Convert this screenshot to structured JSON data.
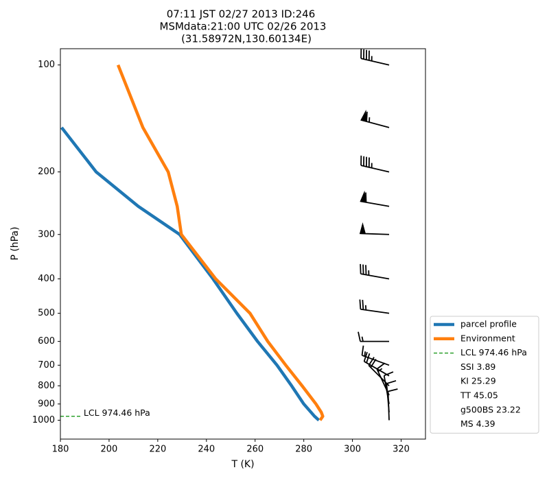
{
  "chart_data": {
    "type": "sounding",
    "title": [
      "07:11 JST 02/27 2013  ID:246",
      "MSMdata:21:00 UTC 02/26 2013",
      "(31.58972N,130.60134E)"
    ],
    "xlabel": "T (K)",
    "ylabel": "P (hPa)",
    "xlim": [
      180,
      330
    ],
    "xticks": [
      180,
      200,
      220,
      240,
      260,
      280,
      300,
      320
    ],
    "ylim": [
      1130,
      90
    ],
    "yscale": "log",
    "yticks": [
      100,
      200,
      300,
      400,
      500,
      600,
      700,
      800,
      900,
      1000
    ],
    "series": [
      {
        "name": "parcel profile",
        "color": "#1f77b4",
        "x": [
          180.5,
          194.7,
          212,
          229,
          242.7,
          252.5,
          261,
          269,
          275,
          280,
          284.4,
          286.2
        ],
        "y": [
          150,
          200,
          250,
          300,
          400,
          500,
          600,
          700,
          800,
          900,
          974.46,
          1000
        ]
      },
      {
        "name": "Environment",
        "color": "#ff7f0e",
        "x": [
          203.7,
          213.9,
          224.3,
          228,
          229.7,
          243.8,
          257.9,
          265.2,
          272.6,
          279.3,
          285,
          287.2,
          287.8,
          286.7
        ],
        "y": [
          100,
          150,
          200,
          250,
          300,
          400,
          500,
          600,
          700,
          800,
          900,
          950,
          975,
          1000
        ]
      }
    ],
    "lcl": {
      "name": "LCL 974.46 hPa",
      "p": 974.46,
      "color": "#2ca02c",
      "x": [
        180,
        189
      ]
    },
    "indices": [
      "SSI 3.89",
      "KI 25.29",
      "TT 45.05",
      "g500BS 23.22",
      "MS 4.39"
    ],
    "barbs": {
      "levels": [
        100,
        150,
        200,
        250,
        300,
        400,
        500,
        600,
        700,
        750,
        800,
        850,
        900,
        950,
        1000
      ],
      "speed": [
        45,
        65,
        45,
        60,
        50,
        35,
        25,
        15,
        15,
        20,
        20,
        15,
        10,
        10,
        10
      ],
      "direction": [
        283,
        285,
        283,
        280,
        272,
        280,
        278,
        270,
        290,
        300,
        315,
        335,
        350,
        355,
        358
      ]
    }
  }
}
